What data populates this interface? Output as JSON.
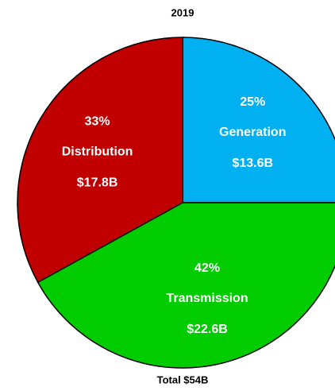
{
  "chart_data": {
    "type": "pie",
    "title": "2019",
    "categories": [
      "Generation",
      "Transmission",
      "Distribution"
    ],
    "values": [
      25,
      42,
      33
    ],
    "value_labels": [
      "25%",
      "42%",
      "33%"
    ],
    "amount_labels": [
      "$13.6B",
      "$22.6B",
      "$17.8B"
    ],
    "colors": [
      "#00b0f0",
      "#00cc00",
      "#c00000"
    ],
    "footer": "Total $54B"
  }
}
